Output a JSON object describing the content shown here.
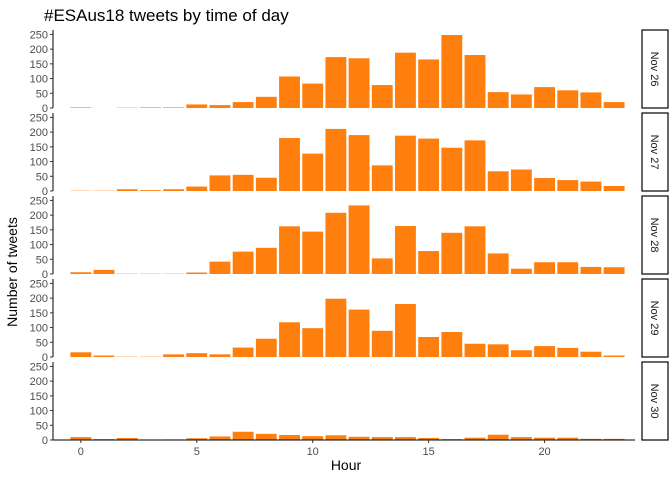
{
  "chart_data": {
    "type": "bar",
    "title": "#ESAus18 tweets by time of day",
    "xlabel": "Hour",
    "ylabel": "Number of tweets",
    "x": [
      0,
      1,
      2,
      3,
      4,
      5,
      6,
      7,
      8,
      9,
      10,
      11,
      12,
      13,
      14,
      15,
      16,
      17,
      18,
      19,
      20,
      21,
      22,
      23
    ],
    "x_ticks": [
      0,
      5,
      10,
      15,
      20
    ],
    "xlim": [
      -1.2,
      23.9
    ],
    "y_ticks": [
      0,
      50,
      100,
      150,
      200,
      250
    ],
    "ylim": [
      0,
      265
    ],
    "bar_color": "#FF7F0E",
    "grid": false,
    "facets": [
      {
        "name": "Nov 26",
        "values": [
          2,
          0,
          1,
          2,
          2,
          12,
          10,
          20,
          38,
          107,
          83,
          173,
          169,
          78,
          188,
          165,
          248,
          180,
          54,
          46,
          71,
          60,
          53,
          20
        ]
      },
      {
        "name": "Nov 27",
        "values": [
          1,
          1,
          6,
          3,
          6,
          15,
          53,
          55,
          45,
          180,
          127,
          211,
          190,
          87,
          188,
          178,
          147,
          172,
          67,
          73,
          44,
          37,
          32,
          17
        ]
      },
      {
        "name": "Nov 28",
        "values": [
          6,
          14,
          1,
          1,
          1,
          5,
          42,
          76,
          89,
          162,
          144,
          208,
          233,
          53,
          163,
          78,
          140,
          162,
          70,
          18,
          40,
          40,
          24,
          23
        ]
      },
      {
        "name": "Nov 29",
        "values": [
          16,
          5,
          1,
          1,
          9,
          13,
          9,
          32,
          62,
          118,
          98,
          198,
          161,
          89,
          180,
          68,
          85,
          45,
          43,
          23,
          37,
          31,
          18,
          5
        ]
      },
      {
        "name": "Nov 30",
        "values": [
          10,
          3,
          7,
          0,
          2,
          6,
          12,
          28,
          21,
          17,
          13,
          16,
          11,
          10,
          10,
          7,
          3,
          8,
          18,
          10,
          8,
          8,
          4,
          4
        ]
      }
    ]
  }
}
